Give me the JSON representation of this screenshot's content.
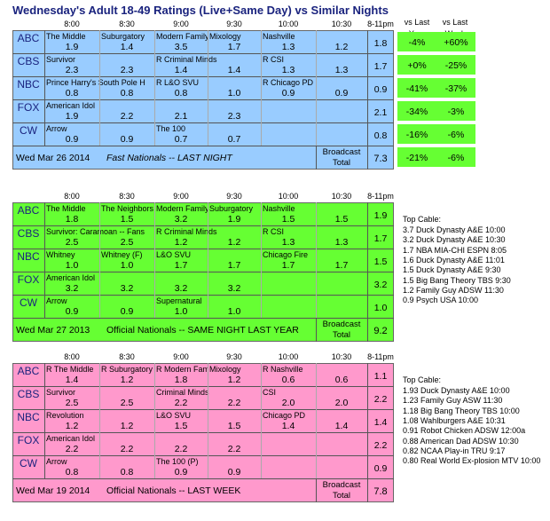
{
  "title": "Wednesday's Adult 18-49 Ratings (Live+Same Day) vs Similar Nights",
  "header": {
    "vs_last_year": "vs Last\nYear",
    "vs_last_week": "vs Last\nWeek",
    "vs_last_year_l1": "vs Last",
    "vs_last_year_l2": "Year",
    "vs_last_week_l1": "vs Last",
    "vs_last_week_l2": "Week"
  },
  "time_slots": [
    "8:00",
    "8:30",
    "9:00",
    "9:30",
    "10:00",
    "10:30",
    "8-11pm"
  ],
  "networks": [
    "ABC",
    "CBS",
    "NBC",
    "FOX",
    "CW"
  ],
  "broadcast_total_label_1": "Broadcast",
  "broadcast_total_label_2": "Total",
  "grids": [
    {
      "name": "current",
      "color": "#99ccff",
      "rows": [
        {
          "shows": [
            "The Middle",
            "Suburgatory",
            "Modern Family",
            "Mixology",
            "Nashville",
            ""
          ],
          "values": [
            "1.9",
            "1.4",
            "3.5",
            "1.7",
            "1.3",
            "1.2"
          ],
          "total": "1.8",
          "vs_year": "-4%",
          "vs_week": "+60%"
        },
        {
          "shows": [
            "Survivor",
            "",
            "R Criminal Minds",
            "",
            "R CSI",
            ""
          ],
          "values": [
            "2.3",
            "2.3",
            "1.4",
            "1.4",
            "1.3",
            "1.3"
          ],
          "total": "1.7",
          "vs_year": "+0%",
          "vs_week": "-25%"
        },
        {
          "shows": [
            "Prince Harry's South Pole H",
            "",
            "R L&O SVU",
            "",
            "R Chicago PD",
            ""
          ],
          "values": [
            "0.8",
            "0.8",
            "0.8",
            "1.0",
            "0.9",
            "0.9"
          ],
          "total": "0.9",
          "vs_year": "-41%",
          "vs_week": "-37%"
        },
        {
          "shows": [
            "American Idol",
            "",
            "",
            "",
            "",
            ""
          ],
          "values": [
            "1.9",
            "2.2",
            "2.1",
            "2.3",
            "",
            ""
          ],
          "total": "2.1",
          "vs_year": "-34%",
          "vs_week": "-3%"
        },
        {
          "shows": [
            "Arrow",
            "",
            "The 100",
            "",
            "",
            ""
          ],
          "values": [
            "0.9",
            "0.9",
            "0.7",
            "0.7",
            "",
            ""
          ],
          "total": "0.8",
          "vs_year": "-16%",
          "vs_week": "-6%"
        }
      ],
      "footer_date": "Wed Mar 26 2014",
      "footer_desc": "Fast Nationals -- LAST NIGHT",
      "footer_total": "7.3",
      "footer_vs_year": "-21%",
      "footer_vs_week": "-6%"
    },
    {
      "name": "last_year",
      "color": "#66ff33",
      "rows": [
        {
          "shows": [
            "The Middle",
            "The Neighbors",
            "Modern Family",
            "Suburgatory",
            "Nashville",
            ""
          ],
          "values": [
            "1.8",
            "1.5",
            "3.2",
            "1.9",
            "1.5",
            "1.5"
          ],
          "total": "1.9"
        },
        {
          "shows": [
            "Survivor: Caramoan -- Fans",
            "",
            "R Criminal Minds",
            "",
            "R CSI",
            ""
          ],
          "values": [
            "2.5",
            "2.5",
            "1.2",
            "1.2",
            "1.3",
            "1.3"
          ],
          "total": "1.7"
        },
        {
          "shows": [
            "Whitney",
            "Whitney (F)",
            "L&O SVU",
            "",
            "Chicago Fire",
            ""
          ],
          "values": [
            "1.0",
            "1.0",
            "1.7",
            "1.7",
            "1.7",
            "1.7"
          ],
          "total": "1.5"
        },
        {
          "shows": [
            "American Idol",
            "",
            "",
            "",
            "",
            ""
          ],
          "values": [
            "3.2",
            "3.2",
            "3.2",
            "3.2",
            "",
            ""
          ],
          "total": "3.2"
        },
        {
          "shows": [
            "Arrow",
            "",
            "Supernatural",
            "",
            "",
            ""
          ],
          "values": [
            "0.9",
            "0.9",
            "1.0",
            "1.0",
            "",
            ""
          ],
          "total": "1.0"
        }
      ],
      "footer_date": "Wed Mar 27 2013",
      "footer_desc": "Official Nationals -- SAME NIGHT LAST YEAR",
      "footer_total": "9.2",
      "top_cable_title": "Top Cable:",
      "top_cable": [
        "3.7 Duck Dynasty A&E 10:00",
        "3.2 Duck Dynasty A&E 10:30",
        "1.7 NBA MIA-CHI ESPN 8:05",
        "1.6 Duck Dynasty A&E 11:01",
        "1.5 Duck Dynasty A&E 9:30",
        "1.5 Big Bang Theory TBS 9:30",
        "1.2 Family Guy ADSW 11:30",
        "0.9 Psych USA 10:00"
      ]
    },
    {
      "name": "last_week",
      "color": "#ff99cc",
      "rows": [
        {
          "shows": [
            "R The Middle",
            "R Suburgatory",
            "R Modern Family",
            "Mixology",
            "R Nashville",
            ""
          ],
          "values": [
            "1.4",
            "1.2",
            "1.8",
            "1.2",
            "0.6",
            "0.6"
          ],
          "total": "1.1"
        },
        {
          "shows": [
            "Survivor",
            "",
            "Criminal Minds",
            "",
            "CSI",
            ""
          ],
          "values": [
            "2.5",
            "2.5",
            "2.2",
            "2.2",
            "2.0",
            "2.0"
          ],
          "total": "2.2"
        },
        {
          "shows": [
            "Revolution",
            "",
            "L&O SVU",
            "",
            "Chicago PD",
            ""
          ],
          "values": [
            "1.2",
            "1.2",
            "1.5",
            "1.5",
            "1.4",
            "1.4"
          ],
          "total": "1.4"
        },
        {
          "shows": [
            "American Idol",
            "",
            "",
            "",
            "",
            ""
          ],
          "values": [
            "2.2",
            "2.2",
            "2.2",
            "2.2",
            "",
            ""
          ],
          "total": "2.2"
        },
        {
          "shows": [
            "Arrow",
            "",
            "The 100 (P)",
            "",
            "",
            ""
          ],
          "values": [
            "0.8",
            "0.8",
            "0.9",
            "0.9",
            "",
            ""
          ],
          "total": "0.9"
        }
      ],
      "footer_date": "Wed Mar 19 2014",
      "footer_desc": "Official Nationals -- LAST WEEK",
      "footer_total": "7.8",
      "top_cable_title": "Top Cable:",
      "top_cable": [
        "1.93 Duck Dynasty A&E 10:00",
        "1.23 Family Guy ASW 11:30",
        "1.18 Big Bang Theory TBS 10:00",
        "1.08 Wahlburgers A&E 10:31",
        "0.91 Robot Chicken ADSW 12:00a",
        "0.88 American Dad ADSW 10:30",
        "0.82 NCAA Play-in TRU 9:17",
        "0.80 Real World Ex-plosion MTV 10:00"
      ]
    }
  ],
  "colors": {
    "title": "#1a237e",
    "pct_green": "#66ff33",
    "blue": "#99ccff",
    "green": "#66ff33",
    "pink": "#ff99cc"
  }
}
